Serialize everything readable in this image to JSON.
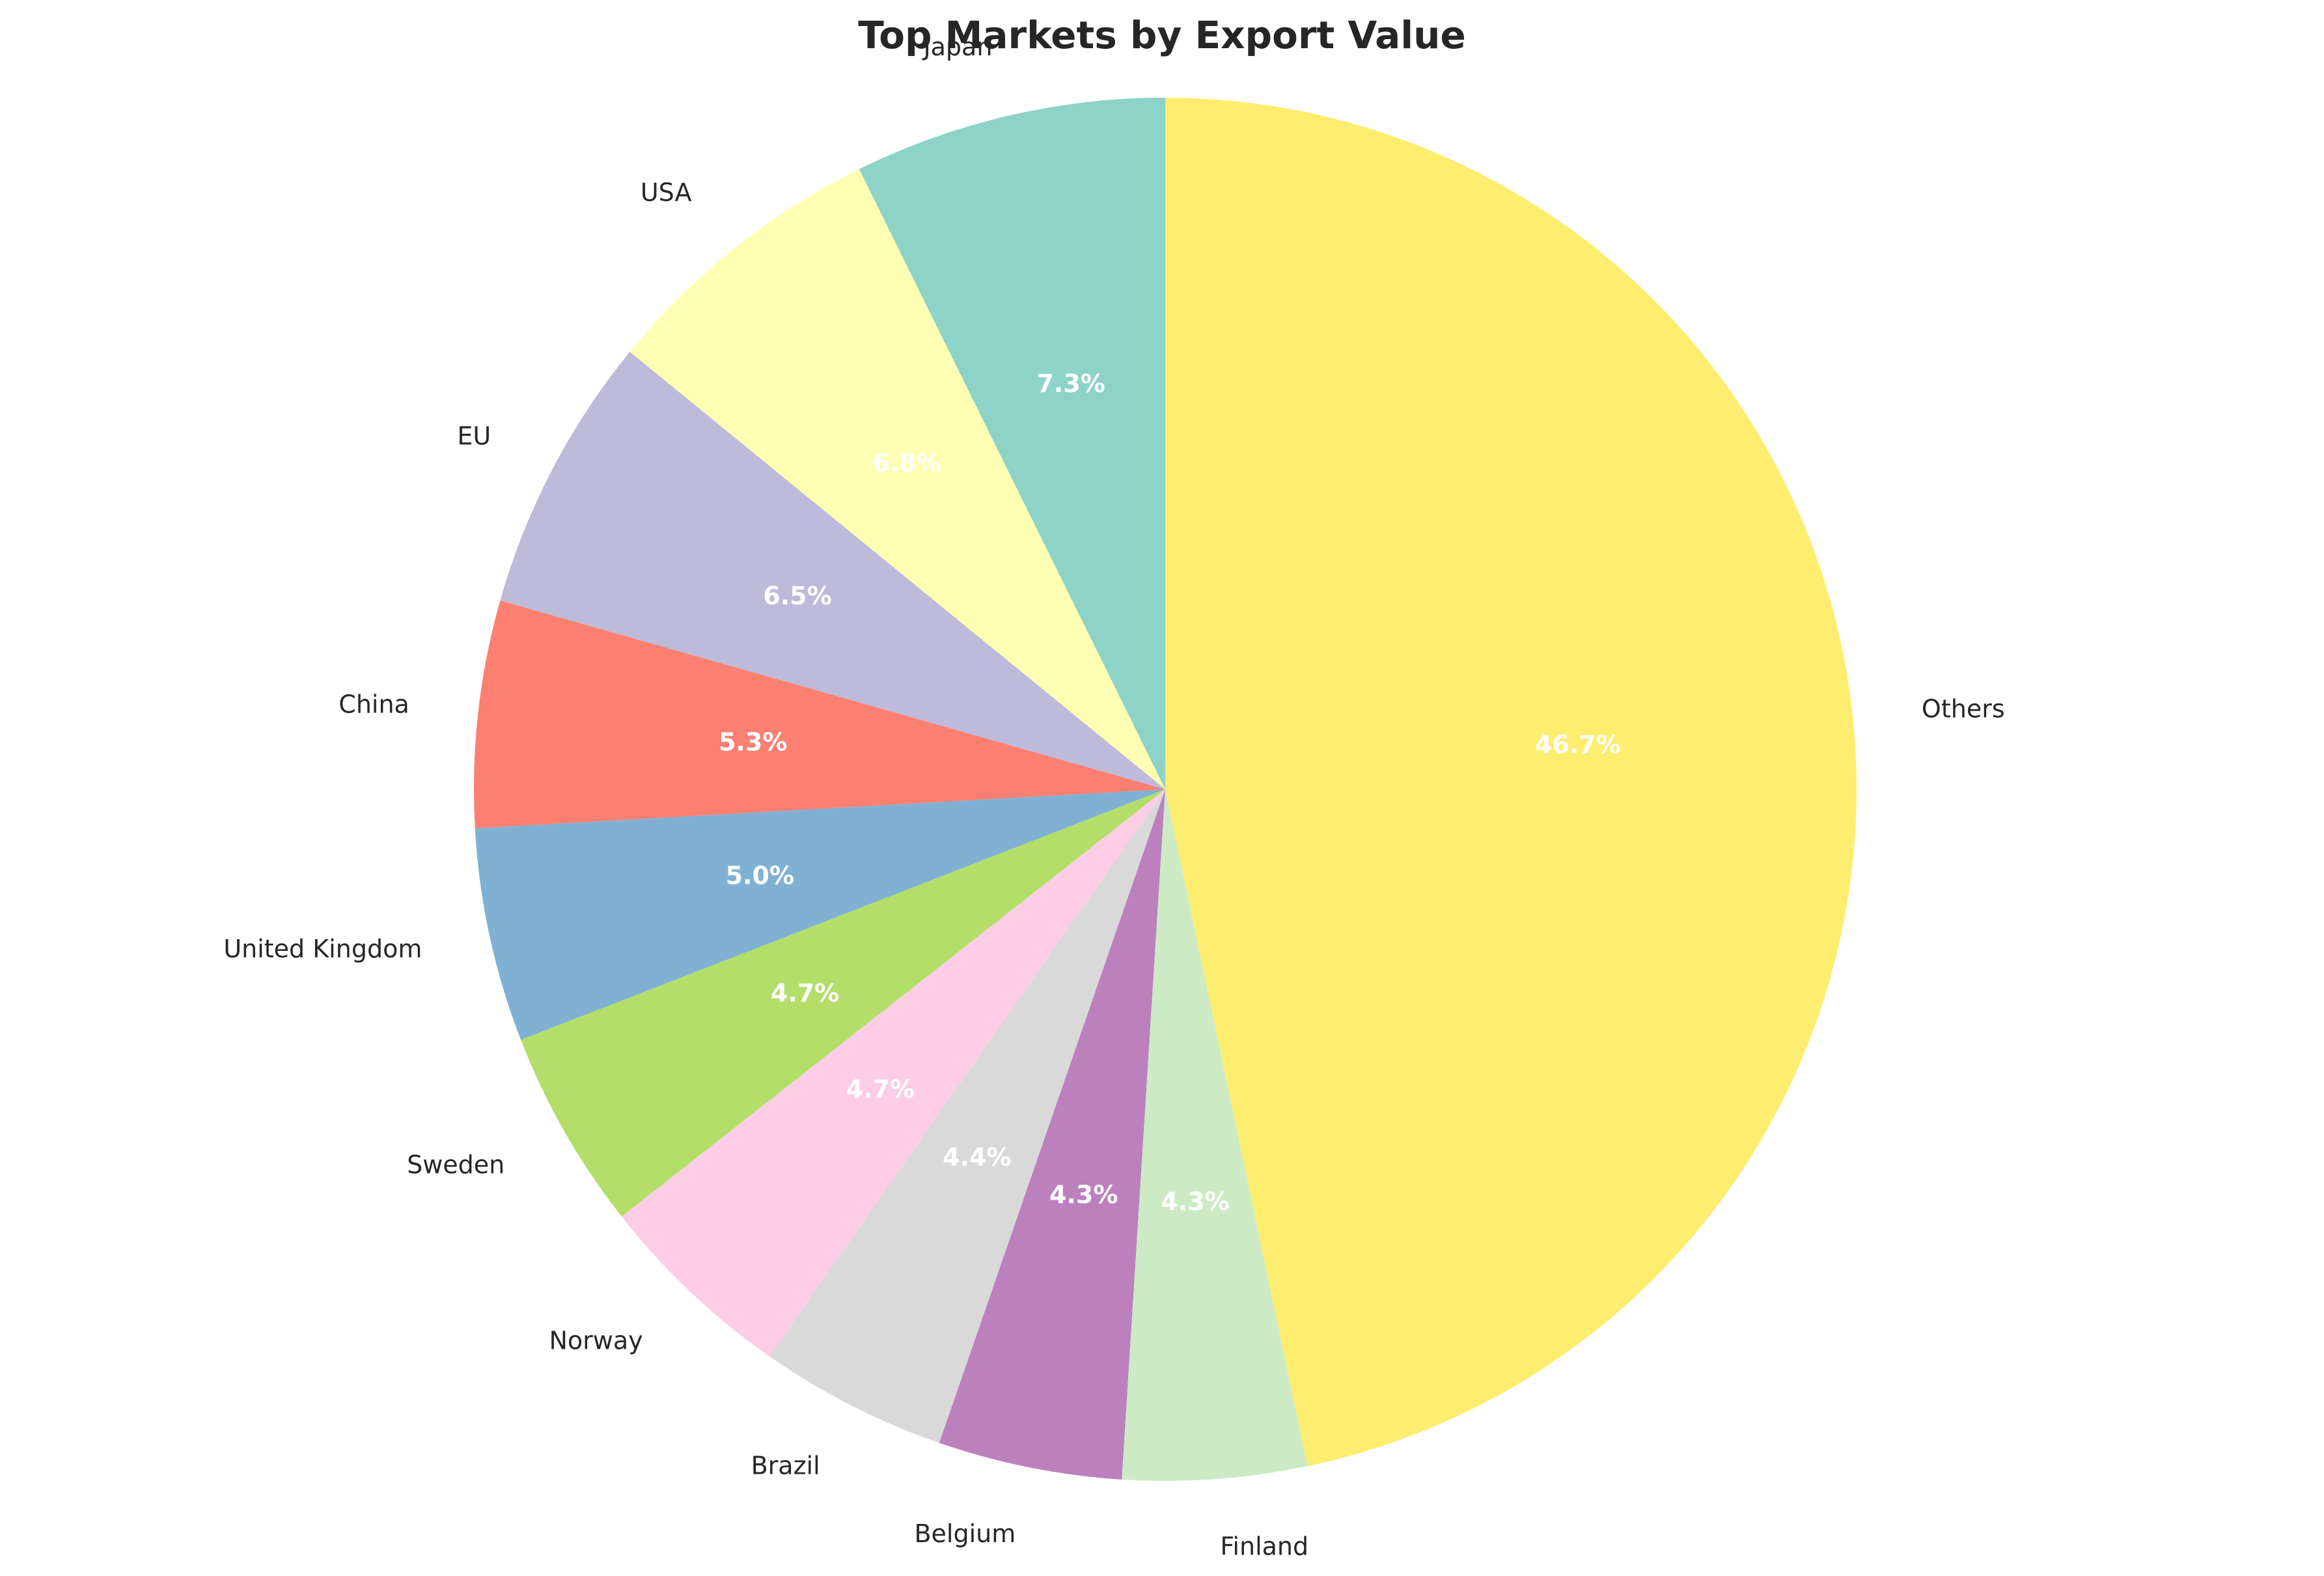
{
  "chart_data": {
    "type": "pie",
    "title": "Top Markets by Export Value",
    "start_angle_deg": 90,
    "direction": "counterclockwise",
    "slices": [
      {
        "label": "Japan",
        "value": 7.3,
        "pct_text": "7.3%",
        "color": "#8dd3c7"
      },
      {
        "label": "USA",
        "value": 6.8,
        "pct_text": "6.8%",
        "color": "#ffffb3"
      },
      {
        "label": "EU",
        "value": 6.5,
        "pct_text": "6.5%",
        "color": "#bebada"
      },
      {
        "label": "China",
        "value": 5.3,
        "pct_text": "5.3%",
        "color": "#fb8072"
      },
      {
        "label": "United Kingdom",
        "value": 5.0,
        "pct_text": "5.0%",
        "color": "#80b1d3"
      },
      {
        "label": "Sweden",
        "value": 4.7,
        "pct_text": "4.7%",
        "color": "#b3de69"
      },
      {
        "label": "Norway",
        "value": 4.7,
        "pct_text": "4.7%",
        "color": "#fccde5"
      },
      {
        "label": "Brazil",
        "value": 4.4,
        "pct_text": "4.4%",
        "color": "#d9d9d9"
      },
      {
        "label": "Belgium",
        "value": 4.3,
        "pct_text": "4.3%",
        "color": "#bc80bd"
      },
      {
        "label": "Finland",
        "value": 4.3,
        "pct_text": "4.3%",
        "color": "#ccebc5"
      },
      {
        "label": "Others",
        "value": 46.7,
        "pct_text": "46.7%",
        "color": "#ffed6f"
      }
    ]
  }
}
